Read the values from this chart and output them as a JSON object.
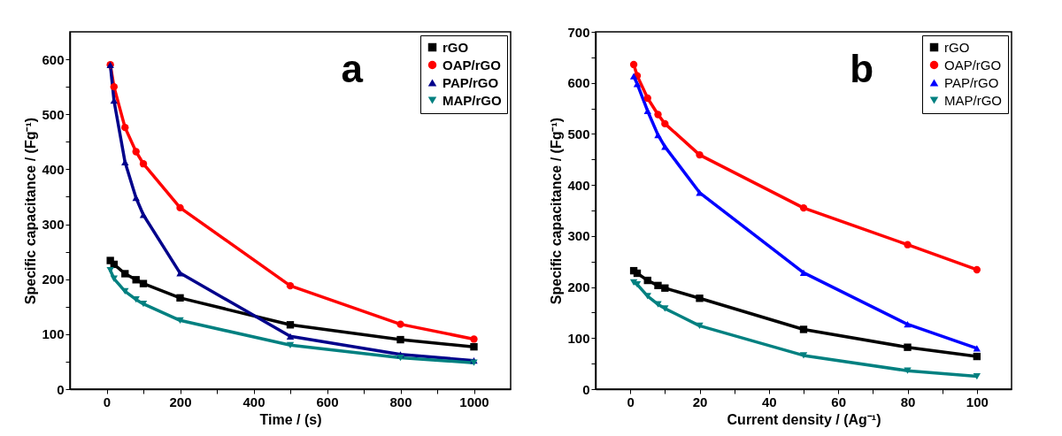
{
  "chart_data": [
    {
      "type": "line",
      "xlabel": "Time / (s)",
      "ylabel": "Specific capacitance / (Fg⁻¹)",
      "annotations": [
        "a"
      ],
      "legend": "top right",
      "grid": false,
      "line_style": "solid",
      "xlim": [
        -100,
        1100
      ],
      "xticks": [
        0,
        {
          "value": 100,
          "label": null
        },
        200,
        {
          "value": 300,
          "label": null
        },
        400,
        {
          "value": 500,
          "label": null
        },
        600,
        {
          "value": 700,
          "label": null
        },
        800,
        {
          "value": 900,
          "label": null
        },
        1000
      ],
      "ylim": [
        0,
        650
      ],
      "yticks": [
        0,
        {
          "value": 50,
          "label": null
        },
        100,
        {
          "value": 150,
          "label": null
        },
        200,
        {
          "value": 250,
          "label": null
        },
        300,
        {
          "value": 350,
          "label": null
        },
        400,
        {
          "value": 450,
          "label": null
        },
        500,
        {
          "value": 550,
          "label": null
        },
        600
      ],
      "x": [
        10,
        20,
        50,
        80,
        100,
        200,
        500,
        800,
        1000
      ],
      "series": [
        {
          "name": "rGO",
          "color": "#000000",
          "marker": "square",
          "values": [
            234,
            227,
            210,
            199,
            192,
            166,
            117,
            90,
            77
          ]
        },
        {
          "name": "OAP/rGO",
          "color": "#ff0000",
          "marker": "circle",
          "values": [
            590,
            550,
            476,
            432,
            410,
            330,
            188,
            118,
            91
          ]
        },
        {
          "name": "PAP/rGO",
          "color": "#00008b",
          "marker": "triangle",
          "values": [
            590,
            525,
            413,
            348,
            317,
            211,
            96,
            63,
            52
          ]
        },
        {
          "name": "MAP/rGO",
          "color": "#008080",
          "marker": "triangle-down",
          "values": [
            216,
            201,
            178,
            163,
            155,
            125,
            80,
            57,
            48
          ]
        }
      ]
    },
    {
      "type": "line",
      "xlabel": "Current density / (Ag⁻¹)",
      "ylabel": "Specific capacitance / (Fg⁻¹)",
      "annotations": [
        "b"
      ],
      "legend": "top right",
      "grid": false,
      "line_style": "solid",
      "xlim": [
        -10,
        110
      ],
      "xticks": [
        0,
        {
          "value": 10,
          "label": null
        },
        20,
        {
          "value": 30,
          "label": null
        },
        40,
        {
          "value": 50,
          "label": null
        },
        60,
        {
          "value": 70,
          "label": null
        },
        80,
        {
          "value": 90,
          "label": null
        },
        100
      ],
      "ylim": [
        0,
        700
      ],
      "yticks": [
        0,
        {
          "value": 50,
          "label": null
        },
        100,
        {
          "value": 150,
          "label": null
        },
        200,
        {
          "value": 250,
          "label": null
        },
        300,
        {
          "value": 350,
          "label": null
        },
        400,
        {
          "value": 450,
          "label": null
        },
        500,
        {
          "value": 550,
          "label": null
        },
        600,
        {
          "value": 650,
          "label": null
        },
        700
      ],
      "x": [
        1,
        2,
        5,
        8,
        10,
        20,
        50,
        80,
        100
      ],
      "series": [
        {
          "name": "rGO",
          "color": "#000000",
          "marker": "square",
          "values": [
            232,
            227,
            213,
            203,
            198,
            178,
            117,
            82,
            64
          ]
        },
        {
          "name": "OAP/rGO",
          "color": "#ff0000",
          "marker": "circle",
          "values": [
            636,
            614,
            570,
            538,
            520,
            459,
            355,
            283,
            234
          ]
        },
        {
          "name": "PAP/rGO",
          "color": "#0000ff",
          "marker": "triangle",
          "values": [
            613,
            598,
            545,
            498,
            475,
            385,
            228,
            127,
            80
          ]
        },
        {
          "name": "MAP/rGO",
          "color": "#008080",
          "marker": "triangle-down",
          "values": [
            209,
            205,
            182,
            166,
            158,
            124,
            66,
            36,
            25
          ]
        }
      ]
    }
  ]
}
